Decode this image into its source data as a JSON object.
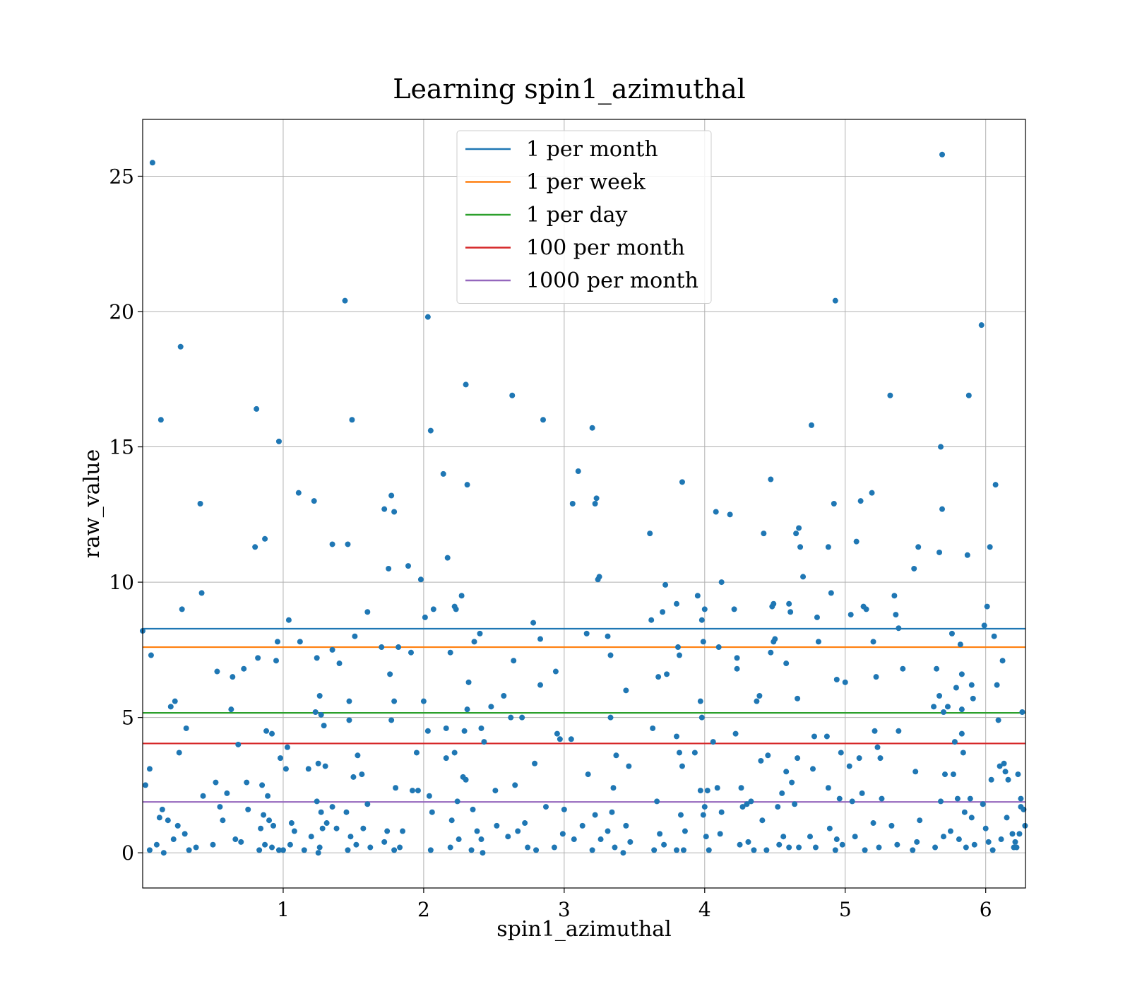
{
  "chart_data": {
    "type": "scatter",
    "title": "Learning spin1_azimuthal",
    "xlabel": "spin1_azimuthal",
    "ylabel": "raw_value",
    "xlim": [
      0,
      6.283
    ],
    "ylim": [
      -1.3,
      27.1
    ],
    "xticks": [
      1,
      2,
      3,
      4,
      5,
      6
    ],
    "yticks": [
      0,
      5,
      10,
      15,
      20,
      25
    ],
    "grid": true,
    "legend_position": "top-center",
    "point_color": "#1f77b4",
    "hlines": [
      {
        "name": "1 per month",
        "value": 8.28,
        "color": "#1f77b4"
      },
      {
        "name": "1 per week",
        "value": 7.6,
        "color": "#ff7f0e"
      },
      {
        "name": "1 per day",
        "value": 5.17,
        "color": "#2ca02c"
      },
      {
        "name": "100 per month",
        "value": 4.04,
        "color": "#d62728"
      },
      {
        "name": "1000 per month",
        "value": 1.88,
        "color": "#9467bd"
      }
    ],
    "points": [
      [
        0.07,
        25.5
      ],
      [
        0.13,
        16.0
      ],
      [
        0.27,
        18.7
      ],
      [
        0.41,
        12.9
      ],
      [
        0.42,
        9.6
      ],
      [
        0.28,
        9.0
      ],
      [
        0.0,
        8.2
      ],
      [
        0.06,
        7.3
      ],
      [
        0.23,
        5.6
      ],
      [
        0.31,
        4.6
      ],
      [
        0.26,
        3.7
      ],
      [
        0.05,
        3.1
      ],
      [
        0.02,
        2.5
      ],
      [
        0.2,
        5.4
      ],
      [
        0.14,
        1.6
      ],
      [
        0.12,
        1.3
      ],
      [
        0.18,
        1.2
      ],
      [
        0.25,
        1.0
      ],
      [
        0.3,
        0.7
      ],
      [
        0.22,
        0.5
      ],
      [
        0.1,
        0.3
      ],
      [
        0.05,
        0.1
      ],
      [
        0.15,
        0.0
      ],
      [
        0.33,
        0.1
      ],
      [
        0.38,
        0.2
      ],
      [
        0.43,
        2.1
      ],
      [
        0.5,
        0.3
      ],
      [
        0.52,
        2.6
      ],
      [
        0.55,
        1.7
      ],
      [
        0.57,
        1.2
      ],
      [
        0.6,
        2.2
      ],
      [
        0.53,
        6.7
      ],
      [
        0.63,
        5.3
      ],
      [
        0.64,
        6.5
      ],
      [
        0.68,
        4.0
      ],
      [
        0.72,
        6.8
      ],
      [
        0.74,
        2.6
      ],
      [
        0.75,
        1.6
      ],
      [
        0.7,
        0.4
      ],
      [
        0.66,
        0.5
      ],
      [
        0.81,
        16.4
      ],
      [
        0.8,
        11.3
      ],
      [
        0.87,
        11.6
      ],
      [
        0.82,
        7.2
      ],
      [
        0.95,
        7.1
      ],
      [
        0.96,
        7.8
      ],
      [
        0.88,
        4.5
      ],
      [
        0.92,
        4.4
      ],
      [
        0.85,
        2.5
      ],
      [
        0.89,
        2.1
      ],
      [
        0.86,
        1.4
      ],
      [
        0.9,
        1.2
      ],
      [
        0.93,
        1.0
      ],
      [
        0.84,
        0.9
      ],
      [
        0.87,
        0.3
      ],
      [
        0.83,
        0.1
      ],
      [
        0.92,
        0.2
      ],
      [
        0.97,
        0.1
      ],
      [
        0.97,
        15.2
      ],
      [
        1.04,
        8.6
      ],
      [
        1.03,
        3.9
      ],
      [
        0.98,
        3.5
      ],
      [
        1.02,
        3.1
      ],
      [
        1.06,
        1.1
      ],
      [
        1.08,
        0.8
      ],
      [
        1.0,
        0.1
      ],
      [
        1.05,
        0.3
      ],
      [
        1.11,
        13.3
      ],
      [
        1.12,
        7.8
      ],
      [
        1.18,
        3.1
      ],
      [
        1.2,
        0.6
      ],
      [
        1.15,
        0.1
      ],
      [
        1.22,
        13.0
      ],
      [
        1.24,
        7.2
      ],
      [
        1.23,
        5.2
      ],
      [
        1.26,
        5.8
      ],
      [
        1.27,
        5.1
      ],
      [
        1.29,
        4.7
      ],
      [
        1.25,
        3.3
      ],
      [
        1.3,
        3.2
      ],
      [
        1.24,
        1.9
      ],
      [
        1.27,
        1.5
      ],
      [
        1.31,
        1.1
      ],
      [
        1.28,
        0.9
      ],
      [
        1.26,
        0.2
      ],
      [
        1.25,
        0.0
      ],
      [
        1.35,
        11.4
      ],
      [
        1.35,
        7.5
      ],
      [
        1.4,
        7.0
      ],
      [
        1.35,
        1.7
      ],
      [
        1.38,
        0.9
      ],
      [
        1.44,
        20.4
      ],
      [
        1.46,
        11.4
      ],
      [
        1.47,
        5.6
      ],
      [
        1.47,
        4.9
      ],
      [
        1.49,
        16.0
      ],
      [
        1.51,
        8.0
      ],
      [
        1.53,
        3.6
      ],
      [
        1.5,
        2.8
      ],
      [
        1.56,
        2.9
      ],
      [
        1.45,
        1.5
      ],
      [
        1.48,
        0.6
      ],
      [
        1.52,
        0.3
      ],
      [
        1.46,
        0.1
      ],
      [
        1.6,
        8.9
      ],
      [
        1.6,
        1.8
      ],
      [
        1.57,
        0.9
      ],
      [
        1.62,
        0.2
      ],
      [
        1.7,
        7.6
      ],
      [
        1.72,
        12.7
      ],
      [
        1.75,
        10.5
      ],
      [
        1.77,
        13.2
      ],
      [
        1.79,
        12.6
      ],
      [
        1.76,
        6.6
      ],
      [
        1.79,
        5.6
      ],
      [
        1.77,
        4.9
      ],
      [
        1.8,
        2.4
      ],
      [
        1.74,
        0.8
      ],
      [
        1.72,
        0.4
      ],
      [
        1.79,
        0.1
      ],
      [
        1.82,
        7.6
      ],
      [
        1.89,
        10.6
      ],
      [
        1.91,
        7.4
      ],
      [
        1.92,
        2.3
      ],
      [
        1.95,
        3.7
      ],
      [
        1.96,
        2.3
      ],
      [
        1.83,
        0.2
      ],
      [
        1.85,
        0.8
      ],
      [
        1.98,
        10.1
      ],
      [
        2.0,
        5.6
      ],
      [
        2.01,
        8.7
      ],
      [
        2.03,
        19.8
      ],
      [
        2.05,
        15.6
      ],
      [
        2.07,
        9.0
      ],
      [
        2.03,
        4.5
      ],
      [
        2.04,
        2.1
      ],
      [
        2.06,
        1.5
      ],
      [
        2.05,
        0.1
      ],
      [
        2.14,
        14.0
      ],
      [
        2.17,
        10.9
      ],
      [
        2.19,
        7.4
      ],
      [
        2.22,
        9.1
      ],
      [
        2.23,
        9.0
      ],
      [
        2.27,
        9.5
      ],
      [
        2.16,
        4.6
      ],
      [
        2.16,
        3.5
      ],
      [
        2.22,
        3.7
      ],
      [
        2.28,
        2.8
      ],
      [
        2.29,
        4.5
      ],
      [
        2.3,
        2.7
      ],
      [
        2.24,
        1.9
      ],
      [
        2.2,
        1.2
      ],
      [
        2.25,
        0.5
      ],
      [
        2.19,
        0.2
      ],
      [
        2.3,
        17.3
      ],
      [
        2.31,
        13.6
      ],
      [
        2.32,
        6.3
      ],
      [
        2.31,
        5.3
      ],
      [
        2.36,
        7.8
      ],
      [
        2.4,
        8.1
      ],
      [
        2.41,
        4.6
      ],
      [
        2.43,
        4.1
      ],
      [
        2.35,
        1.6
      ],
      [
        2.38,
        0.8
      ],
      [
        2.41,
        0.5
      ],
      [
        2.34,
        0.1
      ],
      [
        2.42,
        0.0
      ],
      [
        2.48,
        5.4
      ],
      [
        2.51,
        2.3
      ],
      [
        2.52,
        1.0
      ],
      [
        2.57,
        5.8
      ],
      [
        2.6,
        0.6
      ],
      [
        2.62,
        5.0
      ],
      [
        2.63,
        16.9
      ],
      [
        2.64,
        7.1
      ],
      [
        2.65,
        2.5
      ],
      [
        2.67,
        0.8
      ],
      [
        2.7,
        5.0
      ],
      [
        2.72,
        1.1
      ],
      [
        2.74,
        0.2
      ],
      [
        2.78,
        8.5
      ],
      [
        2.79,
        3.3
      ],
      [
        2.8,
        0.1
      ],
      [
        2.83,
        7.9
      ],
      [
        2.83,
        6.2
      ],
      [
        2.85,
        16.0
      ],
      [
        2.87,
        1.7
      ],
      [
        2.94,
        6.7
      ],
      [
        2.95,
        4.4
      ],
      [
        2.97,
        4.2
      ],
      [
        2.99,
        0.7
      ],
      [
        3.0,
        1.6
      ],
      [
        2.93,
        0.2
      ],
      [
        3.05,
        4.2
      ],
      [
        3.06,
        12.9
      ],
      [
        3.1,
        14.1
      ],
      [
        3.13,
        1.0
      ],
      [
        3.07,
        0.5
      ],
      [
        3.16,
        8.1
      ],
      [
        3.17,
        2.9
      ],
      [
        3.2,
        15.7
      ],
      [
        3.22,
        12.9
      ],
      [
        3.23,
        13.1
      ],
      [
        3.24,
        10.1
      ],
      [
        3.25,
        10.2
      ],
      [
        3.22,
        1.4
      ],
      [
        3.26,
        0.5
      ],
      [
        3.2,
        0.1
      ],
      [
        3.31,
        8.0
      ],
      [
        3.33,
        7.3
      ],
      [
        3.33,
        5.0
      ],
      [
        3.35,
        2.4
      ],
      [
        3.37,
        3.6
      ],
      [
        3.34,
        1.5
      ],
      [
        3.31,
        0.8
      ],
      [
        3.36,
        0.2
      ],
      [
        3.44,
        6.0
      ],
      [
        3.46,
        3.2
      ],
      [
        3.44,
        1.0
      ],
      [
        3.47,
        0.4
      ],
      [
        3.42,
        0.0
      ],
      [
        3.61,
        11.8
      ],
      [
        3.62,
        8.6
      ],
      [
        3.63,
        4.6
      ],
      [
        3.67,
        6.5
      ],
      [
        3.7,
        8.9
      ],
      [
        3.72,
        9.9
      ],
      [
        3.73,
        6.6
      ],
      [
        3.66,
        1.9
      ],
      [
        3.68,
        0.7
      ],
      [
        3.71,
        0.3
      ],
      [
        3.64,
        0.1
      ],
      [
        3.8,
        9.2
      ],
      [
        3.84,
        13.7
      ],
      [
        3.81,
        7.6
      ],
      [
        3.82,
        7.3
      ],
      [
        3.8,
        4.3
      ],
      [
        3.82,
        3.7
      ],
      [
        3.84,
        3.2
      ],
      [
        3.83,
        1.4
      ],
      [
        3.86,
        0.8
      ],
      [
        3.8,
        0.1
      ],
      [
        3.85,
        0.1
      ],
      [
        3.95,
        9.5
      ],
      [
        3.98,
        8.6
      ],
      [
        3.99,
        7.8
      ],
      [
        4.0,
        9.0
      ],
      [
        3.97,
        5.6
      ],
      [
        3.98,
        5.0
      ],
      [
        3.93,
        3.7
      ],
      [
        3.97,
        2.3
      ],
      [
        4.02,
        2.3
      ],
      [
        4.0,
        1.7
      ],
      [
        3.99,
        1.4
      ],
      [
        4.01,
        0.6
      ],
      [
        4.03,
        0.1
      ],
      [
        4.08,
        12.6
      ],
      [
        4.12,
        10.0
      ],
      [
        4.1,
        7.6
      ],
      [
        4.06,
        4.1
      ],
      [
        4.09,
        2.4
      ],
      [
        4.12,
        1.5
      ],
      [
        4.11,
        0.7
      ],
      [
        4.18,
        12.5
      ],
      [
        4.21,
        9.0
      ],
      [
        4.23,
        7.2
      ],
      [
        4.23,
        6.8
      ],
      [
        4.22,
        4.4
      ],
      [
        4.26,
        2.4
      ],
      [
        4.27,
        1.7
      ],
      [
        4.25,
        0.3
      ],
      [
        4.3,
        1.8
      ],
      [
        4.33,
        1.9
      ],
      [
        4.31,
        0.4
      ],
      [
        4.35,
        0.1
      ],
      [
        4.37,
        5.6
      ],
      [
        4.39,
        5.8
      ],
      [
        4.4,
        3.4
      ],
      [
        4.42,
        11.8
      ],
      [
        4.45,
        3.6
      ],
      [
        4.41,
        1.2
      ],
      [
        4.44,
        0.1
      ],
      [
        4.47,
        13.8
      ],
      [
        4.48,
        9.1
      ],
      [
        4.49,
        9.2
      ],
      [
        4.47,
        7.4
      ],
      [
        4.49,
        7.8
      ],
      [
        4.5,
        7.9
      ],
      [
        4.55,
        2.2
      ],
      [
        4.52,
        1.7
      ],
      [
        4.53,
        0.3
      ],
      [
        4.56,
        0.6
      ],
      [
        4.58,
        7.0
      ],
      [
        4.6,
        9.2
      ],
      [
        4.61,
        8.9
      ],
      [
        4.58,
        3.0
      ],
      [
        4.62,
        2.6
      ],
      [
        4.64,
        1.8
      ],
      [
        4.6,
        0.2
      ],
      [
        4.65,
        11.8
      ],
      [
        4.67,
        12.0
      ],
      [
        4.68,
        11.3
      ],
      [
        4.7,
        10.2
      ],
      [
        4.66,
        5.7
      ],
      [
        4.66,
        3.5
      ],
      [
        4.67,
        0.2
      ],
      [
        4.76,
        15.8
      ],
      [
        4.8,
        8.7
      ],
      [
        4.81,
        7.8
      ],
      [
        4.78,
        4.3
      ],
      [
        4.77,
        3.1
      ],
      [
        4.75,
        0.6
      ],
      [
        4.79,
        0.2
      ],
      [
        4.88,
        11.3
      ],
      [
        4.9,
        9.6
      ],
      [
        4.87,
        4.3
      ],
      [
        4.88,
        2.4
      ],
      [
        4.89,
        0.9
      ],
      [
        4.92,
        12.9
      ],
      [
        4.93,
        20.4
      ],
      [
        4.94,
        6.4
      ],
      [
        5.0,
        6.3
      ],
      [
        4.97,
        3.7
      ],
      [
        4.96,
        2.0
      ],
      [
        4.94,
        0.5
      ],
      [
        4.93,
        0.1
      ],
      [
        4.98,
        0.3
      ],
      [
        5.04,
        8.8
      ],
      [
        5.03,
        3.2
      ],
      [
        5.05,
        1.9
      ],
      [
        5.08,
        11.5
      ],
      [
        5.11,
        13.0
      ],
      [
        5.13,
        9.1
      ],
      [
        5.15,
        9.0
      ],
      [
        5.1,
        3.5
      ],
      [
        5.12,
        2.2
      ],
      [
        5.07,
        0.6
      ],
      [
        5.14,
        0.1
      ],
      [
        5.19,
        13.3
      ],
      [
        5.2,
        7.8
      ],
      [
        5.22,
        6.5
      ],
      [
        5.21,
        4.5
      ],
      [
        5.23,
        3.9
      ],
      [
        5.25,
        3.5
      ],
      [
        5.26,
        2.0
      ],
      [
        5.2,
        1.1
      ],
      [
        5.24,
        0.2
      ],
      [
        5.32,
        16.9
      ],
      [
        5.35,
        9.5
      ],
      [
        5.36,
        8.8
      ],
      [
        5.38,
        8.3
      ],
      [
        5.41,
        6.8
      ],
      [
        5.38,
        4.5
      ],
      [
        5.33,
        1.0
      ],
      [
        5.37,
        0.3
      ],
      [
        5.49,
        10.5
      ],
      [
        5.52,
        11.3
      ],
      [
        5.5,
        3.0
      ],
      [
        5.53,
        1.2
      ],
      [
        5.51,
        0.4
      ],
      [
        5.48,
        0.1
      ],
      [
        5.63,
        5.4
      ],
      [
        5.65,
        6.8
      ],
      [
        5.67,
        5.8
      ],
      [
        5.69,
        12.7
      ],
      [
        5.67,
        11.1
      ],
      [
        5.68,
        15.0
      ],
      [
        5.69,
        25.8
      ],
      [
        5.7,
        5.2
      ],
      [
        5.71,
        2.9
      ],
      [
        5.68,
        1.9
      ],
      [
        5.7,
        0.6
      ],
      [
        5.64,
        0.2
      ],
      [
        5.73,
        5.4
      ],
      [
        5.76,
        8.1
      ],
      [
        5.78,
        4.1
      ],
      [
        5.79,
        6.1
      ],
      [
        5.77,
        2.9
      ],
      [
        5.75,
        0.8
      ],
      [
        5.8,
        2.0
      ],
      [
        5.82,
        7.7
      ],
      [
        5.83,
        6.6
      ],
      [
        5.83,
        5.3
      ],
      [
        5.83,
        4.4
      ],
      [
        5.84,
        3.7
      ],
      [
        5.85,
        1.5
      ],
      [
        5.81,
        0.5
      ],
      [
        5.86,
        0.2
      ],
      [
        5.87,
        11.0
      ],
      [
        5.88,
        16.9
      ],
      [
        5.9,
        6.2
      ],
      [
        5.91,
        5.7
      ],
      [
        5.89,
        2.0
      ],
      [
        5.9,
        1.3
      ],
      [
        5.92,
        0.3
      ],
      [
        5.97,
        19.5
      ],
      [
        5.99,
        8.4
      ],
      [
        6.01,
        9.1
      ],
      [
        6.03,
        11.3
      ],
      [
        6.04,
        2.7
      ],
      [
        5.98,
        1.8
      ],
      [
        6.0,
        0.9
      ],
      [
        6.02,
        0.4
      ],
      [
        6.05,
        0.1
      ],
      [
        6.06,
        8.0
      ],
      [
        6.07,
        13.6
      ],
      [
        6.08,
        6.2
      ],
      [
        6.09,
        4.9
      ],
      [
        6.1,
        3.2
      ],
      [
        6.12,
        7.1
      ],
      [
        6.13,
        3.3
      ],
      [
        6.14,
        3.0
      ],
      [
        6.16,
        2.7
      ],
      [
        6.11,
        0.5
      ],
      [
        6.15,
        1.3
      ],
      [
        6.19,
        0.7
      ],
      [
        6.2,
        0.2
      ],
      [
        6.22,
        0.2
      ],
      [
        6.23,
        2.9
      ],
      [
        6.25,
        2.0
      ],
      [
        6.26,
        5.2
      ],
      [
        6.27,
        1.6
      ],
      [
        6.28,
        1.0
      ],
      [
        6.24,
        0.7
      ],
      [
        6.21,
        0.4
      ],
      [
        6.25,
        1.7
      ]
    ]
  }
}
